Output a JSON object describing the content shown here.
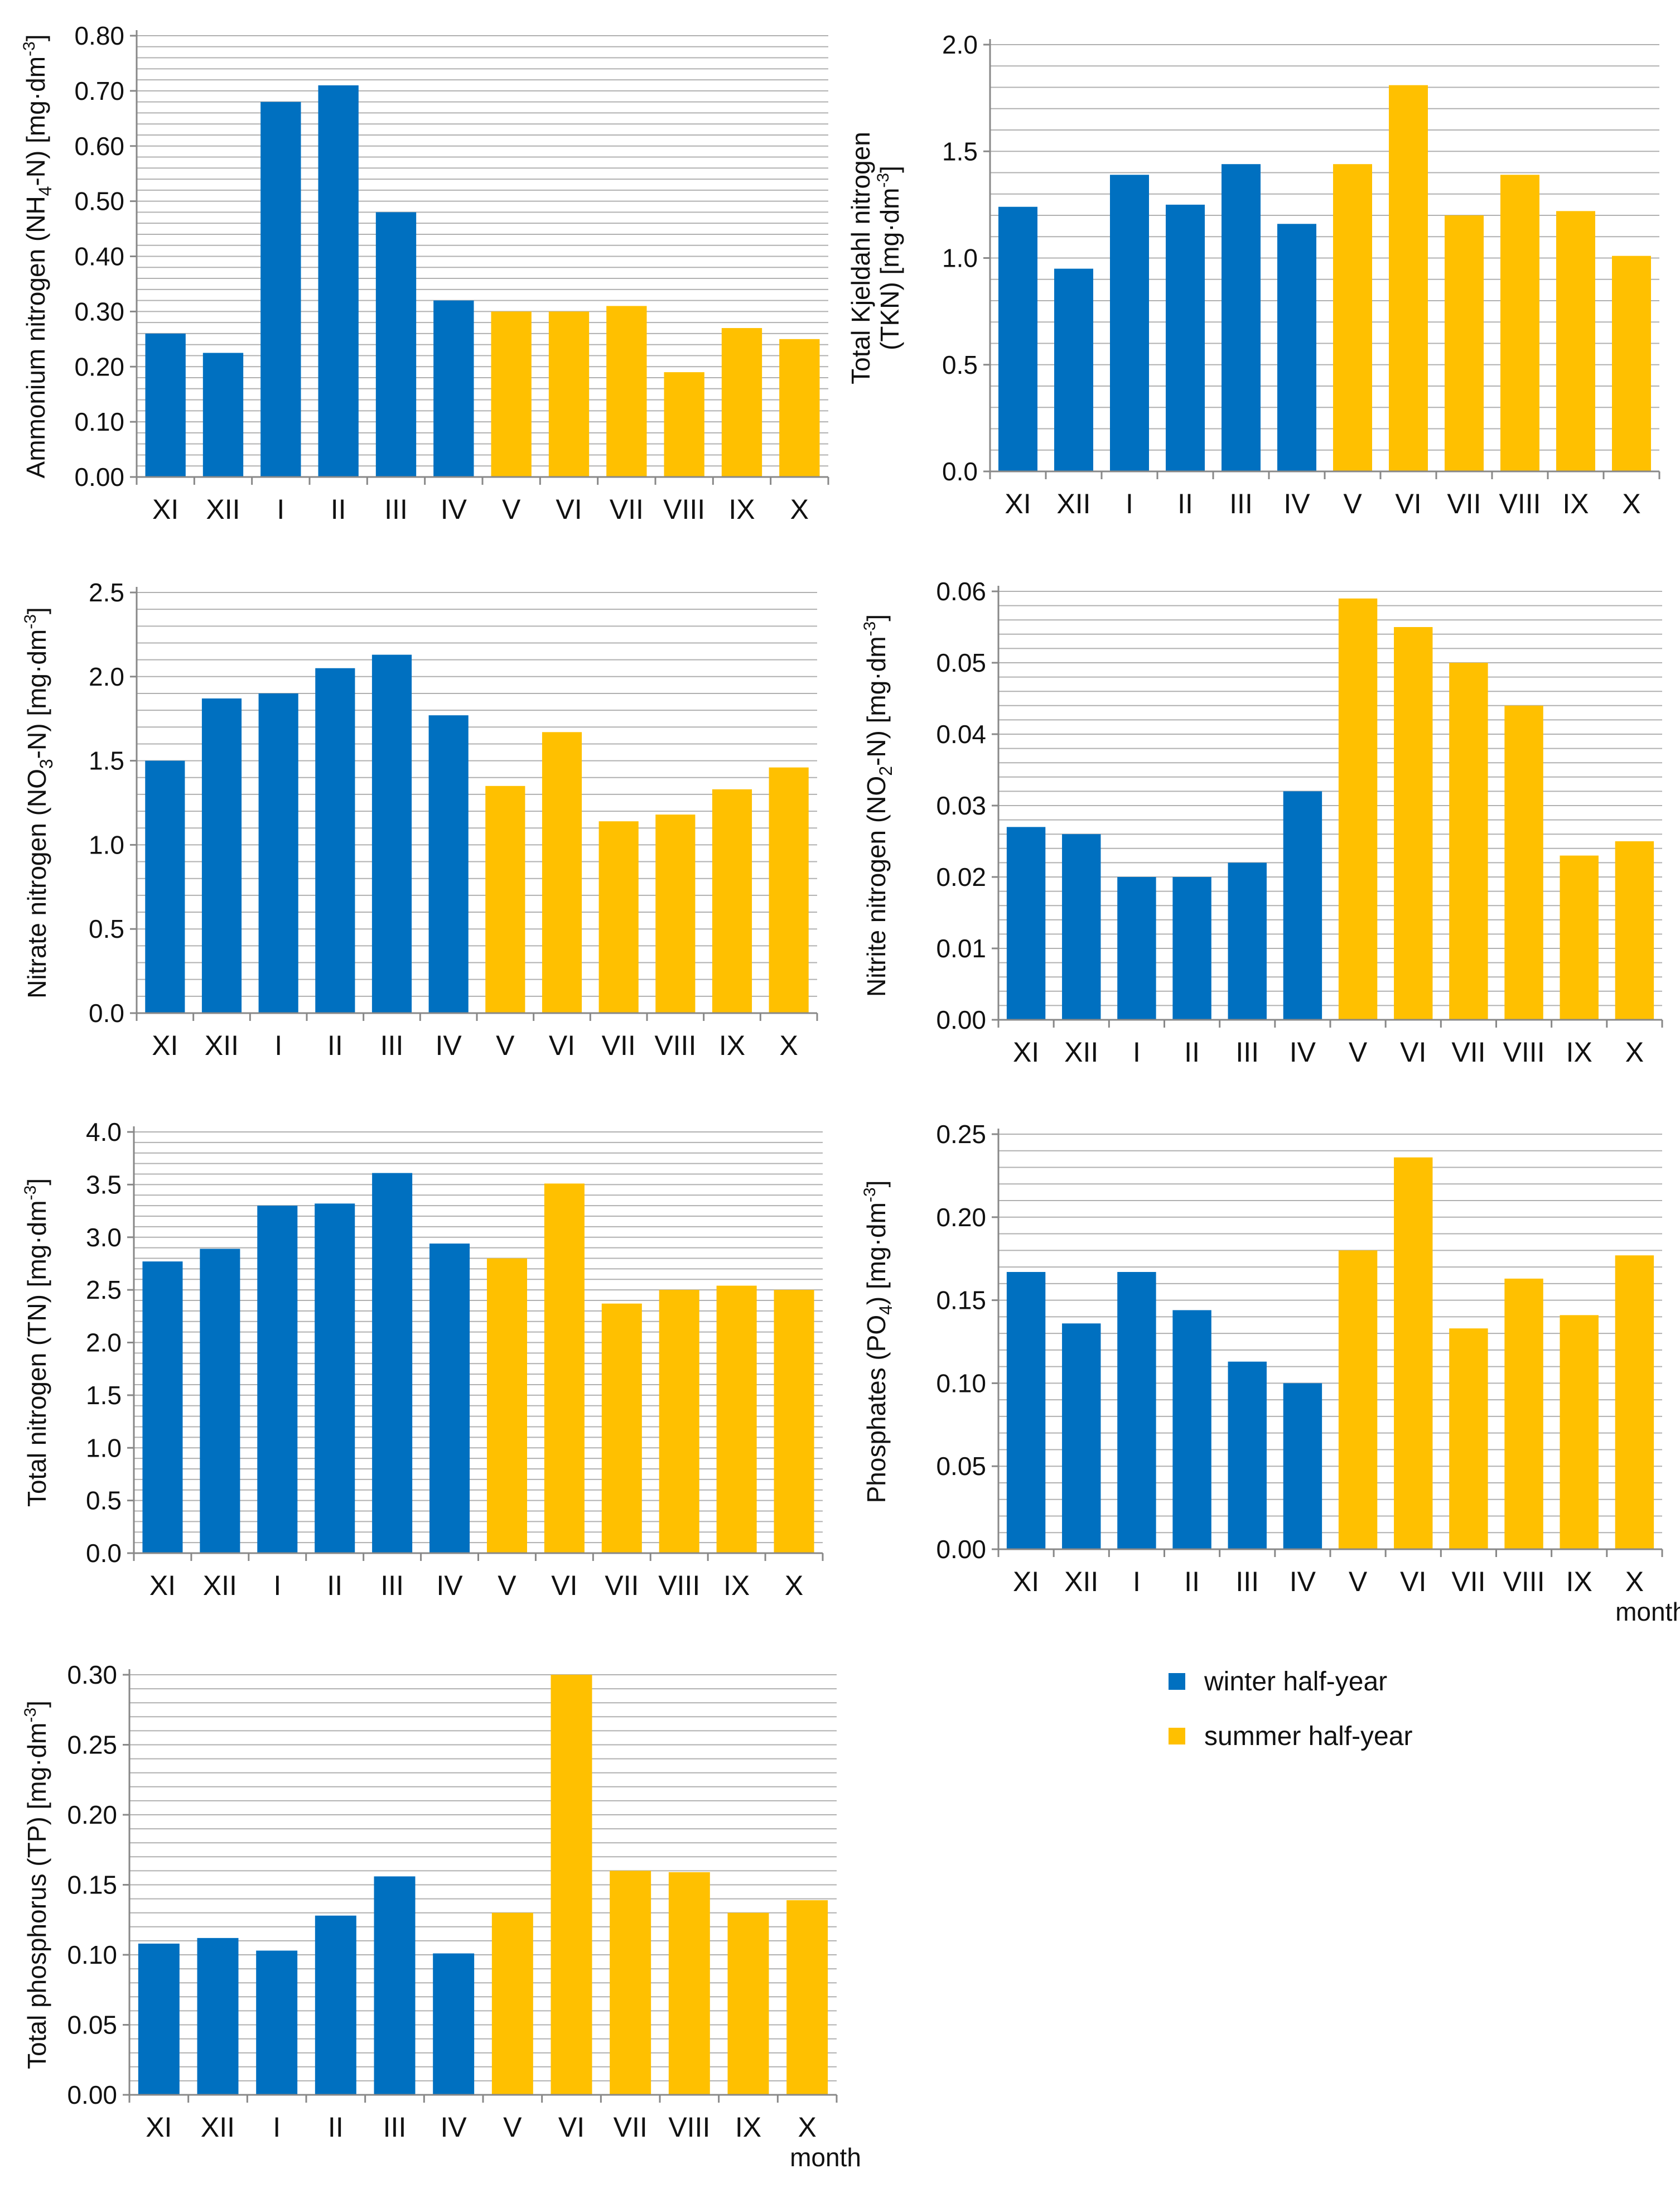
{
  "colors": {
    "winter": "#0070C0",
    "summer": "#FFC000",
    "grid": "#B0B0B0",
    "axis": "#888888"
  },
  "legend": {
    "winter_label": "winter half-year",
    "summer_label": "summer half-year"
  },
  "chart_data": [
    {
      "type": "bar",
      "id": "nh4",
      "ylabel_main": "Ammonium nitrogen (NH",
      "ylabel_sub": "4",
      "ylabel_tail": "-N) [mg·dm",
      "ylabel_sup": "-3",
      "ylabel_end": "]",
      "categories": [
        "XI",
        "XII",
        "I",
        "II",
        "III",
        "IV",
        "V",
        "VI",
        "VII",
        "VIII",
        "IX",
        "X"
      ],
      "values": [
        0.26,
        0.225,
        0.68,
        0.71,
        0.48,
        0.32,
        0.3,
        0.3,
        0.31,
        0.19,
        0.27,
        0.25
      ],
      "seasons": [
        "winter",
        "winter",
        "winter",
        "winter",
        "winter",
        "winter",
        "summer",
        "summer",
        "summer",
        "summer",
        "summer",
        "summer"
      ],
      "ylim": [
        0,
        0.8
      ],
      "major_step": 0.1,
      "minor_step": 0.02,
      "decimals": 2,
      "ticks": [
        "0.00",
        "0.10",
        "0.20",
        "0.30",
        "0.40",
        "0.50",
        "0.60",
        "0.70",
        "0.80"
      ],
      "xlabel": ""
    },
    {
      "type": "bar",
      "id": "tkn",
      "ylabel_line1": "Total Kjeldahl nitrogen",
      "ylabel_main": "(TKN) [mg·dm",
      "ylabel_sub": "",
      "ylabel_tail": "",
      "ylabel_sup": "-3",
      "ylabel_end": "]",
      "categories": [
        "XI",
        "XII",
        "I",
        "II",
        "III",
        "IV",
        "V",
        "VI",
        "VII",
        "VIII",
        "IX",
        "X"
      ],
      "values": [
        1.24,
        0.95,
        1.39,
        1.25,
        1.44,
        1.16,
        1.44,
        1.81,
        1.2,
        1.39,
        1.22,
        1.01
      ],
      "seasons": [
        "winter",
        "winter",
        "winter",
        "winter",
        "winter",
        "winter",
        "summer",
        "summer",
        "summer",
        "summer",
        "summer",
        "summer"
      ],
      "ylim": [
        0,
        2.0
      ],
      "major_step": 0.5,
      "minor_step": 0.1,
      "decimals": 1,
      "ticks": [
        "0.0",
        "0.5",
        "1.0",
        "1.5",
        "2.0"
      ],
      "xlabel": ""
    },
    {
      "type": "bar",
      "id": "no3",
      "ylabel_main": "Nitrate nitrogen (NO",
      "ylabel_sub": "3",
      "ylabel_tail": "-N) [mg·dm",
      "ylabel_sup": "-3",
      "ylabel_end": "]",
      "categories": [
        "XI",
        "XII",
        "I",
        "II",
        "III",
        "IV",
        "V",
        "VI",
        "VII",
        "VIII",
        "IX",
        "X"
      ],
      "values": [
        1.5,
        1.87,
        1.9,
        2.05,
        2.13,
        1.77,
        1.35,
        1.67,
        1.14,
        1.18,
        1.33,
        1.46
      ],
      "seasons": [
        "winter",
        "winter",
        "winter",
        "winter",
        "winter",
        "winter",
        "summer",
        "summer",
        "summer",
        "summer",
        "summer",
        "summer"
      ],
      "ylim": [
        0,
        2.5
      ],
      "major_step": 0.5,
      "minor_step": 0.1,
      "decimals": 1,
      "ticks": [
        "0.0",
        "0.5",
        "1.0",
        "1.5",
        "2.0",
        "2.5"
      ],
      "xlabel": ""
    },
    {
      "type": "bar",
      "id": "no2",
      "ylabel_main": "Nitrite nitrogen (NO",
      "ylabel_sub": "2",
      "ylabel_tail": "-N) [mg·dm",
      "ylabel_sup": "-3",
      "ylabel_end": "]",
      "categories": [
        "XI",
        "XII",
        "I",
        "II",
        "III",
        "IV",
        "V",
        "VI",
        "VII",
        "VIII",
        "IX",
        "X"
      ],
      "values": [
        0.027,
        0.026,
        0.02,
        0.02,
        0.022,
        0.032,
        0.059,
        0.055,
        0.05,
        0.044,
        0.023,
        0.025
      ],
      "seasons": [
        "winter",
        "winter",
        "winter",
        "winter",
        "winter",
        "winter",
        "summer",
        "summer",
        "summer",
        "summer",
        "summer",
        "summer"
      ],
      "ylim": [
        0,
        0.06
      ],
      "major_step": 0.01,
      "minor_step": 0.002,
      "decimals": 2,
      "ticks": [
        "0.00",
        "0.01",
        "0.02",
        "0.03",
        "0.04",
        "0.05",
        "0.06"
      ],
      "xlabel": ""
    },
    {
      "type": "bar",
      "id": "tn",
      "ylabel_main": "Total nitrogen (TN) [mg·dm",
      "ylabel_sub": "",
      "ylabel_tail": "",
      "ylabel_sup": "-3",
      "ylabel_end": "]",
      "categories": [
        "XI",
        "XII",
        "I",
        "II",
        "III",
        "IV",
        "V",
        "VI",
        "VII",
        "VIII",
        "IX",
        "X"
      ],
      "values": [
        2.77,
        2.89,
        3.3,
        3.32,
        3.61,
        2.94,
        2.8,
        3.51,
        2.37,
        2.5,
        2.54,
        2.5
      ],
      "seasons": [
        "winter",
        "winter",
        "winter",
        "winter",
        "winter",
        "winter",
        "summer",
        "summer",
        "summer",
        "summer",
        "summer",
        "summer"
      ],
      "ylim": [
        0,
        4.0
      ],
      "major_step": 0.5,
      "minor_step": 0.1,
      "decimals": 1,
      "ticks": [
        "0.0",
        "0.5",
        "1.0",
        "1.5",
        "2.0",
        "2.5",
        "3.0",
        "3.5",
        "4.0"
      ],
      "xlabel": ""
    },
    {
      "type": "bar",
      "id": "po4",
      "ylabel_main": "Phosphates (PO",
      "ylabel_sub": "4",
      "ylabel_tail": ") [mg·dm",
      "ylabel_sup": "-3",
      "ylabel_end": "]",
      "categories": [
        "XI",
        "XII",
        "I",
        "II",
        "III",
        "IV",
        "V",
        "VI",
        "VII",
        "VIII",
        "IX",
        "X"
      ],
      "values": [
        0.167,
        0.136,
        0.167,
        0.144,
        0.113,
        0.1,
        0.18,
        0.236,
        0.133,
        0.163,
        0.141,
        0.177
      ],
      "seasons": [
        "winter",
        "winter",
        "winter",
        "winter",
        "winter",
        "winter",
        "summer",
        "summer",
        "summer",
        "summer",
        "summer",
        "summer"
      ],
      "ylim": [
        0,
        0.25
      ],
      "major_step": 0.05,
      "minor_step": 0.01,
      "decimals": 2,
      "ticks": [
        "0.00",
        "0.05",
        "0.10",
        "0.15",
        "0.20",
        "0.25"
      ],
      "xlabel": "month"
    },
    {
      "type": "bar",
      "id": "tp",
      "ylabel_main": "Total phosphorus (TP)  [mg·dm",
      "ylabel_sub": "",
      "ylabel_tail": "",
      "ylabel_sup": "-3",
      "ylabel_end": "]",
      "categories": [
        "XI",
        "XII",
        "I",
        "II",
        "III",
        "IV",
        "V",
        "VI",
        "VII",
        "VIII",
        "IX",
        "X"
      ],
      "values": [
        0.108,
        0.112,
        0.103,
        0.128,
        0.156,
        0.101,
        0.13,
        0.3,
        0.16,
        0.159,
        0.13,
        0.139
      ],
      "seasons": [
        "winter",
        "winter",
        "winter",
        "winter",
        "winter",
        "winter",
        "summer",
        "summer",
        "summer",
        "summer",
        "summer",
        "summer"
      ],
      "ylim": [
        0,
        0.3
      ],
      "major_step": 0.05,
      "minor_step": 0.01,
      "decimals": 2,
      "ticks": [
        "0.00",
        "0.05",
        "0.10",
        "0.15",
        "0.20",
        "0.25",
        "0.30"
      ],
      "xlabel": "month"
    }
  ]
}
